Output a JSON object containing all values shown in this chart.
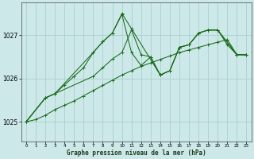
{
  "title": "Graphe pression niveau de la mer (hPa)",
  "bg_color": "#cce8e8",
  "grid_color": "#aad0d0",
  "line_color": "#1a6b1a",
  "xlim": [
    -0.5,
    23.5
  ],
  "ylim": [
    1024.55,
    1027.75
  ],
  "yticks": [
    1025,
    1026,
    1027
  ],
  "xticks": [
    0,
    1,
    2,
    3,
    4,
    5,
    6,
    7,
    8,
    9,
    10,
    11,
    12,
    13,
    14,
    15,
    16,
    17,
    18,
    19,
    20,
    21,
    22,
    23
  ],
  "line1_x": [
    0,
    1,
    2,
    3,
    4,
    5,
    6,
    7,
    8,
    9,
    10,
    11,
    12,
    13,
    14,
    15,
    16,
    17,
    18,
    19,
    20,
    21,
    22,
    23
  ],
  "line1_y": [
    1025.0,
    1025.05,
    1025.15,
    1025.28,
    1025.38,
    1025.48,
    1025.6,
    1025.72,
    1025.84,
    1025.96,
    1026.08,
    1026.18,
    1026.28,
    1026.36,
    1026.44,
    1026.52,
    1026.6,
    1026.66,
    1026.72,
    1026.78,
    1026.84,
    1026.9,
    1026.55,
    1026.55
  ],
  "line2_x": [
    0,
    2,
    3,
    4,
    5,
    6,
    7,
    8,
    9,
    10,
    11,
    12,
    13,
    14,
    15,
    16,
    17,
    18,
    19,
    20,
    21,
    22,
    23
  ],
  "line2_y": [
    1025.0,
    1025.55,
    1025.65,
    1025.85,
    1026.05,
    1026.25,
    1026.6,
    1026.85,
    1027.05,
    1027.48,
    1026.6,
    1026.3,
    1026.5,
    1026.08,
    1026.18,
    1026.72,
    1026.78,
    1027.05,
    1027.12,
    1027.12,
    1026.78,
    1026.55,
    1026.55
  ],
  "line3_x": [
    0,
    2,
    3,
    7,
    8,
    9,
    10,
    11,
    14,
    15,
    16,
    17,
    18,
    19,
    20,
    22,
    23
  ],
  "line3_y": [
    1025.0,
    1025.55,
    1025.65,
    1026.6,
    1026.85,
    1027.05,
    1027.5,
    1027.15,
    1026.08,
    1026.18,
    1026.72,
    1026.78,
    1027.05,
    1027.12,
    1027.12,
    1026.55,
    1026.55
  ],
  "line4_x": [
    0,
    2,
    3,
    7,
    8,
    9,
    10,
    11,
    12,
    13,
    14,
    15,
    16,
    17,
    18,
    19,
    20,
    22,
    23
  ],
  "line4_y": [
    1025.0,
    1025.55,
    1025.65,
    1026.05,
    1026.25,
    1026.45,
    1026.6,
    1027.12,
    1026.55,
    1026.5,
    1026.08,
    1026.18,
    1026.72,
    1026.78,
    1027.05,
    1027.12,
    1027.12,
    1026.55,
    1026.55
  ]
}
